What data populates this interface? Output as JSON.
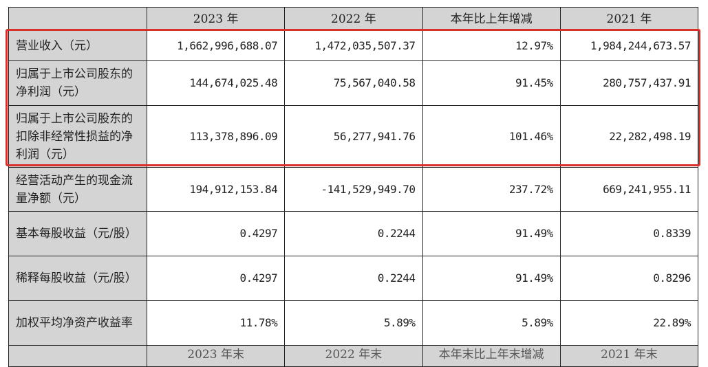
{
  "table": {
    "headers": [
      "",
      "2023 年",
      "2022 年",
      "本年比上年增减",
      "2021 年"
    ],
    "rows": [
      {
        "label": "营业收入（元）",
        "values": [
          "1,662,996,688.07",
          "1,472,035,507.37",
          "12.97%",
          "1,984,244,673.57"
        ]
      },
      {
        "label": "归属于上市公司股东的净利润（元）",
        "values": [
          "144,674,025.48",
          "75,567,040.58",
          "91.45%",
          "280,757,437.91"
        ]
      },
      {
        "label": "归属于上市公司股东的扣除非经常性损益的净利润（元）",
        "values": [
          "113,378,896.09",
          "56,277,941.76",
          "101.46%",
          "22,282,498.19"
        ]
      },
      {
        "label": "经营活动产生的现金流量净额（元）",
        "values": [
          "194,912,153.84",
          "-141,529,949.70",
          "237.72%",
          "669,241,955.11"
        ]
      },
      {
        "label": "基本每股收益（元/股）",
        "values": [
          "0.4297",
          "0.2244",
          "91.49%",
          "0.8339"
        ]
      },
      {
        "label": "稀释每股收益（元/股）",
        "values": [
          "0.4297",
          "0.2244",
          "91.49%",
          "0.8296"
        ]
      },
      {
        "label": "加权平均净资产收益率",
        "values": [
          "11.78%",
          "5.89%",
          "5.89%",
          "22.89%"
        ]
      }
    ],
    "partial_headers": [
      "",
      "2023 年末",
      "2022 年末",
      "本年末比上年末增减",
      "2021 年末"
    ]
  },
  "highlight_color": "#d9302c"
}
